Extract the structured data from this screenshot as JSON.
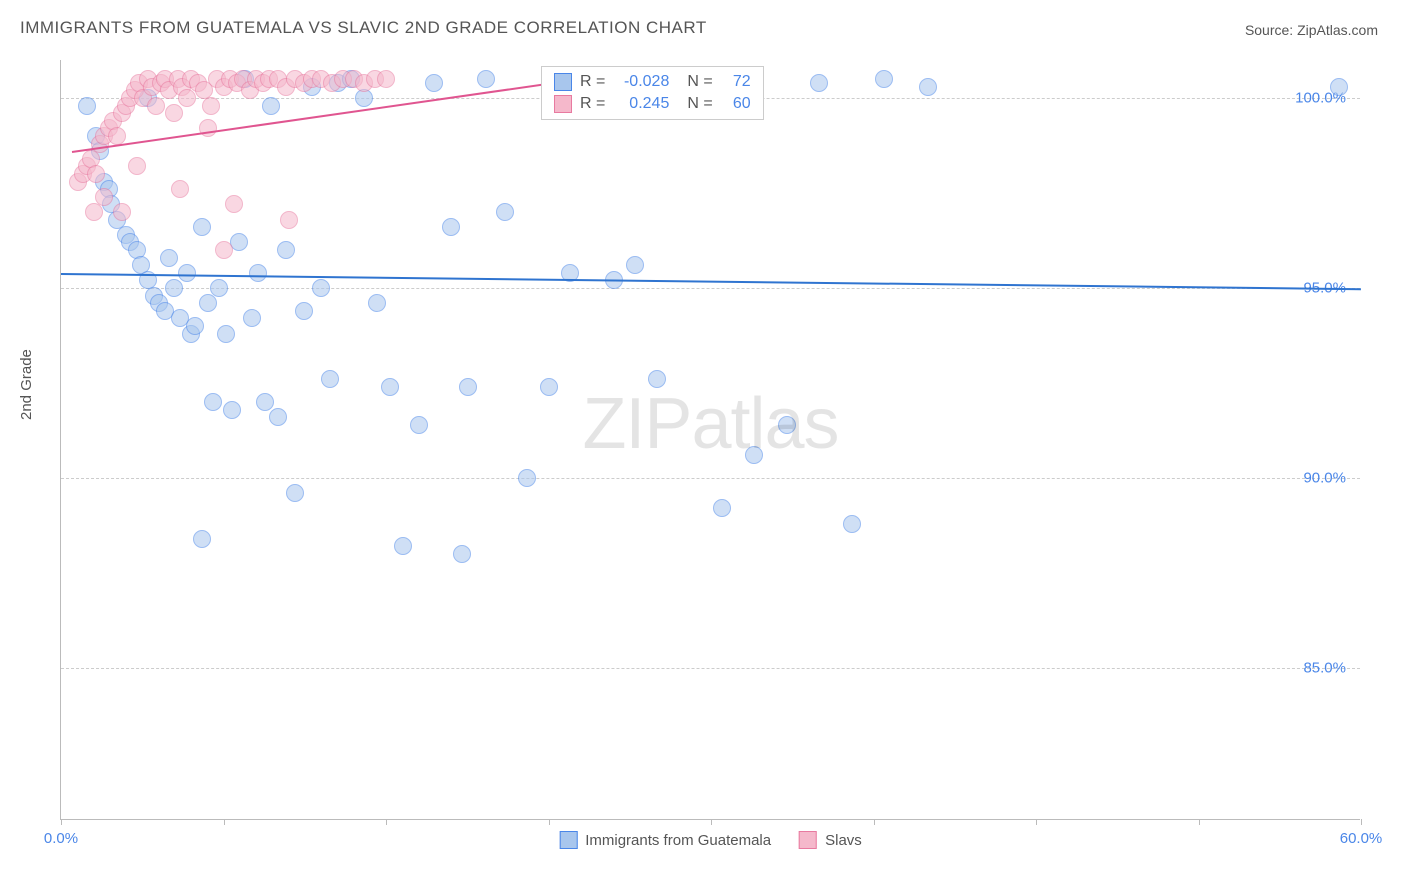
{
  "title": "IMMIGRANTS FROM GUATEMALA VS SLAVIC 2ND GRADE CORRELATION CHART",
  "source": "Source: ZipAtlas.com",
  "y_axis_label": "2nd Grade",
  "watermark": "ZIPatlas",
  "chart": {
    "type": "scatter",
    "background_color": "#ffffff",
    "grid_color": "#cccccc",
    "axis_color": "#bbbbbb",
    "tick_label_color": "#4a86e8",
    "xlim": [
      0,
      60
    ],
    "ylim": [
      81,
      101
    ],
    "y_ticks": [
      85,
      90,
      95,
      100
    ],
    "y_tick_labels": [
      "85.0%",
      "90.0%",
      "95.0%",
      "100.0%"
    ],
    "x_tick_positions": [
      0,
      7.5,
      15,
      22.5,
      30,
      37.5,
      45,
      52.5,
      60
    ],
    "x_tick_labels": {
      "0": "0.0%",
      "60": "60.0%"
    },
    "marker_radius": 9,
    "marker_opacity": 0.55,
    "trend_line_width": 2
  },
  "series": [
    {
      "name": "Immigrants from Guatemala",
      "fill_color": "#a8c6ed",
      "stroke_color": "#4a86e8",
      "trend_color": "#2f74d0",
      "r_value": "-0.028",
      "n_value": "72",
      "trend": {
        "x1": 0,
        "y1": 95.4,
        "x2": 60,
        "y2": 95.0
      },
      "points": [
        [
          1.2,
          99.8
        ],
        [
          1.6,
          99.0
        ],
        [
          1.8,
          98.6
        ],
        [
          2.0,
          97.8
        ],
        [
          2.2,
          97.6
        ],
        [
          2.3,
          97.2
        ],
        [
          2.6,
          96.8
        ],
        [
          3.0,
          96.4
        ],
        [
          3.2,
          96.2
        ],
        [
          3.5,
          96.0
        ],
        [
          3.7,
          95.6
        ],
        [
          4.0,
          95.2
        ],
        [
          4.3,
          94.8
        ],
        [
          4.5,
          94.6
        ],
        [
          4.8,
          94.4
        ],
        [
          5.0,
          95.8
        ],
        [
          5.2,
          95.0
        ],
        [
          5.5,
          94.2
        ],
        [
          5.8,
          95.4
        ],
        [
          6.0,
          93.8
        ],
        [
          6.2,
          94.0
        ],
        [
          6.5,
          96.6
        ],
        [
          6.8,
          94.6
        ],
        [
          7.0,
          92.0
        ],
        [
          7.3,
          95.0
        ],
        [
          7.6,
          93.8
        ],
        [
          7.9,
          91.8
        ],
        [
          8.2,
          96.2
        ],
        [
          8.5,
          100.5
        ],
        [
          8.8,
          94.2
        ],
        [
          9.1,
          95.4
        ],
        [
          9.4,
          92.0
        ],
        [
          9.7,
          99.8
        ],
        [
          10.0,
          91.6
        ],
        [
          10.4,
          96.0
        ],
        [
          10.8,
          89.6
        ],
        [
          11.2,
          94.4
        ],
        [
          11.6,
          100.3
        ],
        [
          12.0,
          95.0
        ],
        [
          12.4,
          92.6
        ],
        [
          12.8,
          100.4
        ],
        [
          13.4,
          100.5
        ],
        [
          14.0,
          100.0
        ],
        [
          14.6,
          94.6
        ],
        [
          15.2,
          92.4
        ],
        [
          15.8,
          88.2
        ],
        [
          16.5,
          91.4
        ],
        [
          17.2,
          100.4
        ],
        [
          18.0,
          96.6
        ],
        [
          18.8,
          92.4
        ],
        [
          19.6,
          100.5
        ],
        [
          20.5,
          97.0
        ],
        [
          21.5,
          90.0
        ],
        [
          22.5,
          92.4
        ],
        [
          23.5,
          95.4
        ],
        [
          24.5,
          100.5
        ],
        [
          25.5,
          95.2
        ],
        [
          26.5,
          95.6
        ],
        [
          27.5,
          92.6
        ],
        [
          28.5,
          100.0
        ],
        [
          29.5,
          100.5
        ],
        [
          30.5,
          89.2
        ],
        [
          32.0,
          90.6
        ],
        [
          33.5,
          91.4
        ],
        [
          35.0,
          100.4
        ],
        [
          36.5,
          88.8
        ],
        [
          38.0,
          100.5
        ],
        [
          40.0,
          100.3
        ],
        [
          59.0,
          100.3
        ],
        [
          6.5,
          88.4
        ],
        [
          18.5,
          88.0
        ],
        [
          4.0,
          100.0
        ]
      ]
    },
    {
      "name": "Slavs",
      "fill_color": "#f5b8cb",
      "stroke_color": "#e87aa0",
      "trend_color": "#e05590",
      "r_value": "0.245",
      "n_value": "60",
      "trend": {
        "x1": 0.5,
        "y1": 98.6,
        "x2": 25,
        "y2": 100.6
      },
      "points": [
        [
          0.8,
          97.8
        ],
        [
          1.0,
          98.0
        ],
        [
          1.2,
          98.2
        ],
        [
          1.4,
          98.4
        ],
        [
          1.6,
          98.0
        ],
        [
          1.8,
          98.8
        ],
        [
          2.0,
          99.0
        ],
        [
          2.2,
          99.2
        ],
        [
          2.4,
          99.4
        ],
        [
          2.6,
          99.0
        ],
        [
          2.8,
          99.6
        ],
        [
          3.0,
          99.8
        ],
        [
          3.2,
          100.0
        ],
        [
          3.4,
          100.2
        ],
        [
          3.6,
          100.4
        ],
        [
          3.8,
          100.0
        ],
        [
          4.0,
          100.5
        ],
        [
          4.2,
          100.3
        ],
        [
          4.4,
          99.8
        ],
        [
          4.6,
          100.4
        ],
        [
          4.8,
          100.5
        ],
        [
          5.0,
          100.2
        ],
        [
          5.2,
          99.6
        ],
        [
          5.4,
          100.5
        ],
        [
          5.6,
          100.3
        ],
        [
          5.8,
          100.0
        ],
        [
          6.0,
          100.5
        ],
        [
          6.3,
          100.4
        ],
        [
          6.6,
          100.2
        ],
        [
          6.9,
          99.8
        ],
        [
          7.2,
          100.5
        ],
        [
          7.5,
          100.3
        ],
        [
          7.8,
          100.5
        ],
        [
          8.1,
          100.4
        ],
        [
          8.4,
          100.5
        ],
        [
          8.7,
          100.2
        ],
        [
          9.0,
          100.5
        ],
        [
          9.3,
          100.4
        ],
        [
          9.6,
          100.5
        ],
        [
          10.0,
          100.5
        ],
        [
          10.4,
          100.3
        ],
        [
          10.8,
          100.5
        ],
        [
          11.2,
          100.4
        ],
        [
          11.6,
          100.5
        ],
        [
          12.0,
          100.5
        ],
        [
          12.5,
          100.4
        ],
        [
          13.0,
          100.5
        ],
        [
          13.5,
          100.5
        ],
        [
          14.0,
          100.4
        ],
        [
          14.5,
          100.5
        ],
        [
          15.0,
          100.5
        ],
        [
          1.5,
          97.0
        ],
        [
          2.0,
          97.4
        ],
        [
          2.8,
          97.0
        ],
        [
          3.5,
          98.2
        ],
        [
          5.5,
          97.6
        ],
        [
          6.8,
          99.2
        ],
        [
          8.0,
          97.2
        ],
        [
          7.5,
          96.0
        ],
        [
          10.5,
          96.8
        ]
      ]
    }
  ],
  "legend_top": {
    "rows": [
      {
        "swatch_fill": "#a8c6ed",
        "swatch_stroke": "#4a86e8",
        "r_label": "R =",
        "r_value": "-0.028",
        "n_label": "N =",
        "n_value": "72"
      },
      {
        "swatch_fill": "#f5b8cb",
        "swatch_stroke": "#e87aa0",
        "r_label": "R =",
        "r_value": "0.245",
        "n_label": "N =",
        "n_value": "60"
      }
    ]
  },
  "legend_bottom": [
    {
      "swatch_fill": "#a8c6ed",
      "swatch_stroke": "#4a86e8",
      "label": "Immigrants from Guatemala"
    },
    {
      "swatch_fill": "#f5b8cb",
      "swatch_stroke": "#e87aa0",
      "label": "Slavs"
    }
  ]
}
